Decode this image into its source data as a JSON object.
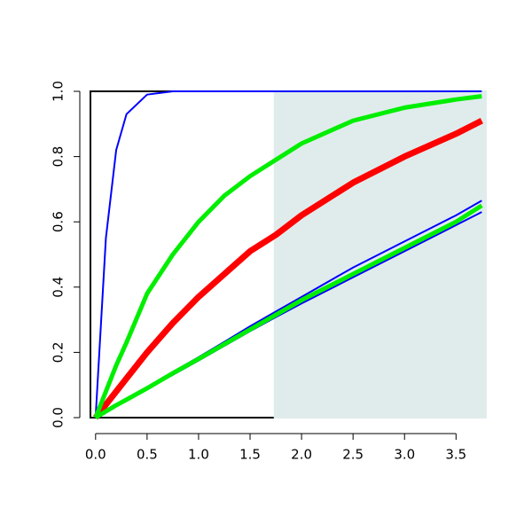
{
  "chart_data": {
    "type": "line",
    "x": [
      0,
      0.1,
      0.2,
      0.3,
      0.5,
      0.75,
      1,
      1.25,
      1.5,
      1.75,
      2,
      2.5,
      3,
      3.5,
      3.75
    ],
    "series": [
      {
        "color": "#0000ff",
        "width": 2,
        "values": [
          0,
          0.55,
          0.82,
          0.93,
          0.99,
          1,
          1,
          1,
          1,
          1,
          1,
          1,
          1,
          1,
          1
        ]
      },
      {
        "color": "#0000ff",
        "width": 2,
        "values": [
          0,
          0.02,
          0.04,
          0.057,
          0.093,
          0.14,
          0.185,
          0.232,
          0.28,
          0.325,
          0.37,
          0.46,
          0.54,
          0.62,
          0.665
        ]
      },
      {
        "color": "#0000ff",
        "width": 2,
        "values": [
          0,
          0.018,
          0.036,
          0.053,
          0.088,
          0.131,
          0.175,
          0.22,
          0.265,
          0.308,
          0.35,
          0.43,
          0.51,
          0.59,
          0.63
        ]
      },
      {
        "color": "#ff0000",
        "width": 7,
        "values": [
          0,
          0.04,
          0.08,
          0.12,
          0.2,
          0.29,
          0.37,
          0.44,
          0.51,
          0.56,
          0.62,
          0.72,
          0.8,
          0.87,
          0.91
        ]
      },
      {
        "color": "#00ee00",
        "width": 5,
        "values": [
          0,
          0.08,
          0.16,
          0.23,
          0.38,
          0.5,
          0.6,
          0.68,
          0.74,
          0.79,
          0.84,
          0.91,
          0.95,
          0.975,
          0.985
        ]
      },
      {
        "color": "#00ee00",
        "width": 5,
        "values": [
          0,
          0.019,
          0.038,
          0.055,
          0.09,
          0.136,
          0.18,
          0.225,
          0.27,
          0.315,
          0.36,
          0.44,
          0.52,
          0.6,
          0.65
        ]
      }
    ],
    "shade": {
      "from": 1.73,
      "color": "#e0ecec"
    },
    "xlim": [
      -0.05,
      3.79
    ],
    "ylim": [
      0,
      1
    ],
    "xticks": [
      {
        "value": 0,
        "label": "0.0"
      },
      0.5,
      {
        "value": 1,
        "label": "1.0"
      },
      1.5,
      {
        "value": 2,
        "label": "2.0"
      },
      2.5,
      {
        "value": 3,
        "label": "3.0"
      },
      3.5
    ],
    "yticks": [
      {
        "value": 0,
        "label": "0.0"
      },
      0.2,
      0.4,
      0.6,
      0.8,
      {
        "value": 1,
        "label": "1.0"
      }
    ]
  }
}
